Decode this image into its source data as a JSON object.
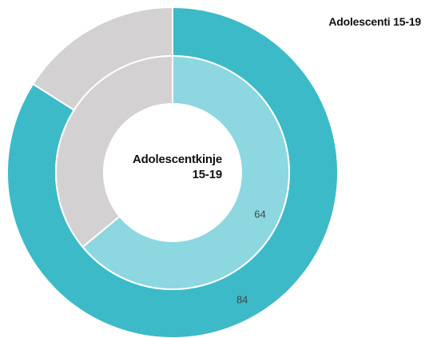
{
  "chart_data": {
    "type": "pie",
    "subtype": "nested-donut",
    "rings": [
      {
        "name": "Adolescenti 15-19",
        "values": [
          84,
          16
        ],
        "value_labels": [
          "84",
          ""
        ],
        "colors": [
          "#3cbac8",
          "#d3d1d2"
        ]
      },
      {
        "name": "Adolescentkinje 15-19",
        "values": [
          64,
          36
        ],
        "value_labels": [
          "64",
          ""
        ],
        "colors": [
          "#8cd7e0",
          "#d3d1d2"
        ]
      }
    ]
  },
  "labels": {
    "outer": "Adolescenti 15-19",
    "center_line1": "Adolescentkinje",
    "center_line2": "15-19"
  }
}
